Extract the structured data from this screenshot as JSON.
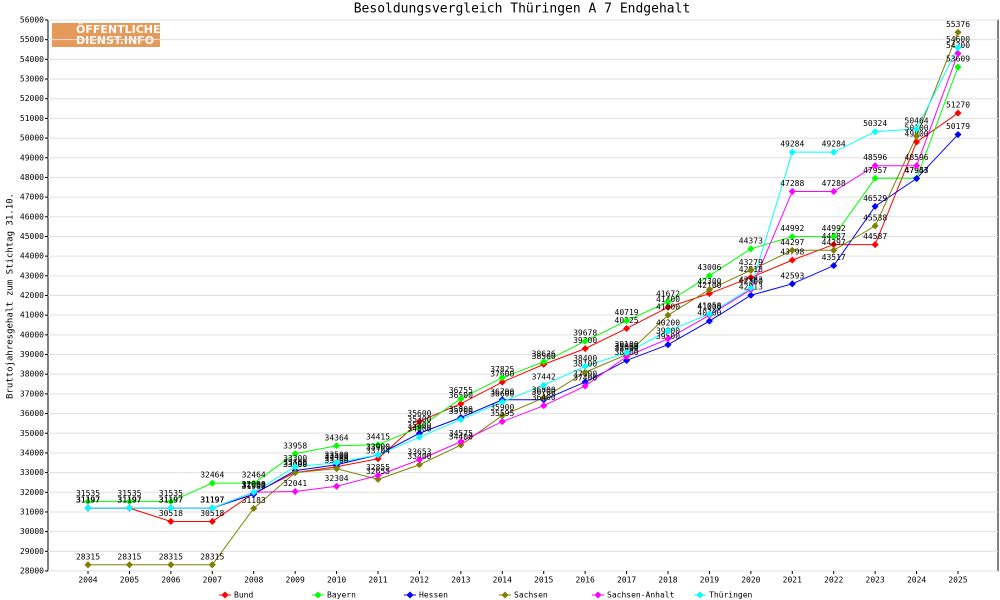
{
  "logo": {
    "line1": "ÖFFENTLICHER",
    "line2": "DIENST.INFO"
  },
  "chart_data": {
    "type": "line",
    "title": "Besoldungsvergleich Thüringen A 7 Endgehalt",
    "y_label": "Bruttojahresgehalt zum Stichtag 31.10.",
    "categories": [
      "2004",
      "2005",
      "2006",
      "2007",
      "2008",
      "2009",
      "2010",
      "2011",
      "2012",
      "2013",
      "2014",
      "2015",
      "2016",
      "2017",
      "2018",
      "2019",
      "2020",
      "2021",
      "2022",
      "2023",
      "2024",
      "2025"
    ],
    "ylim": [
      28000,
      56000
    ],
    "yticks": [
      28000,
      29000,
      30000,
      31000,
      32000,
      33000,
      34000,
      35000,
      36000,
      37000,
      38000,
      39000,
      40000,
      41000,
      42000,
      43000,
      44000,
      45000,
      46000,
      47000,
      48000,
      49000,
      50000,
      51000,
      52000,
      53000,
      54000,
      55000,
      56000
    ],
    "grid": true,
    "series": [
      {
        "name": "Bund",
        "color": "#ff0000",
        "values": [
          31197,
          31197,
          30518,
          30518,
          31950,
          33000,
          33300,
          33704,
          35600,
          36500,
          37600,
          38500,
          39300,
          40325,
          41400,
          42100,
          42918,
          43798,
          44587,
          44587,
          49800,
          51270
        ]
      },
      {
        "name": "Bayern",
        "color": "#00ff00",
        "values": [
          31535,
          31535,
          31535,
          32464,
          32464,
          33958,
          34364,
          34415,
          35300,
          36755,
          37825,
          38626,
          39678,
          40719,
          41672,
          43006,
          44373,
          44992,
          44992,
          47957,
          47957,
          53609
        ]
      },
      {
        "name": "Hessen",
        "color": "#0000ff",
        "values": [
          31197,
          31197,
          31197,
          31197,
          31900,
          33100,
          33400,
          33900,
          35000,
          35800,
          36700,
          36700,
          37600,
          38700,
          39500,
          40700,
          42013,
          42593,
          43517,
          46529,
          47943,
          50179
        ]
      },
      {
        "name": "Sachsen",
        "color": "#808000",
        "values": [
          28315,
          28315,
          28315,
          28315,
          31183,
          33000,
          33200,
          32655,
          33400,
          34400,
          35900,
          36800,
          38100,
          39000,
          41000,
          42300,
          43279,
          44297,
          44297,
          45538,
          50100,
          55376
        ]
      },
      {
        "name": "Sachsen-Anhalt",
        "color": "#ff00ff",
        "values": [
          31197,
          31197,
          31197,
          31197,
          32000,
          32041,
          32304,
          32855,
          33653,
          34575,
          35595,
          36400,
          37400,
          38900,
          39800,
          41000,
          42300,
          47288,
          47288,
          48596,
          48596,
          54300
        ]
      },
      {
        "name": "Thüringen",
        "color": "#00ffff",
        "values": [
          31197,
          31197,
          31197,
          31197,
          32000,
          33300,
          33500,
          33900,
          34800,
          35700,
          36600,
          37442,
          38400,
          39100,
          40200,
          41058,
          42383,
          49284,
          49284,
          50324,
          50464,
          54600
        ]
      }
    ]
  }
}
